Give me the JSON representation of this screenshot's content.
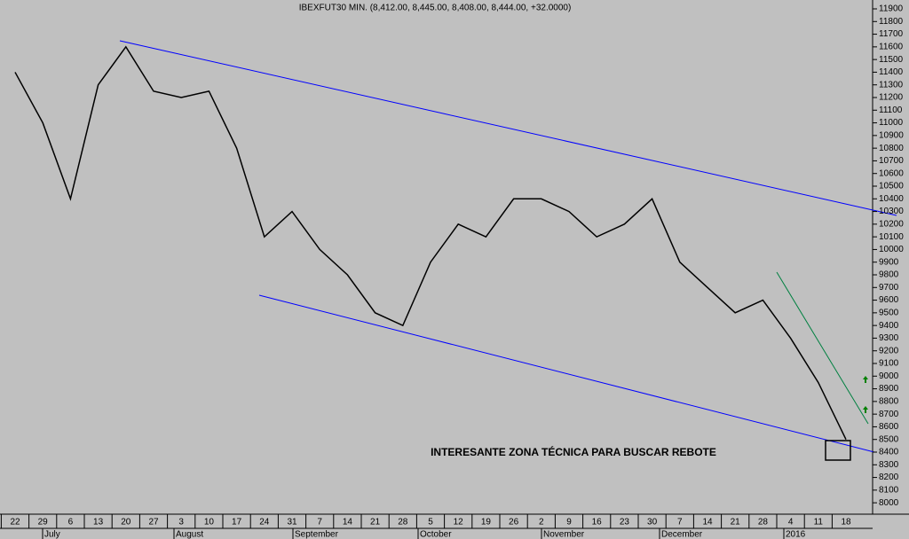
{
  "chart_data": {
    "type": "line",
    "title": "IBEXFUT30 MIN. (8,412.00, 8,445.00, 8,408.00, 8,444.00, +32.0000)",
    "annotation": "INTERESANTE ZONA TÉCNICA PARA BUSCAR REBOTE",
    "categories": [
      "22",
      "29",
      "6",
      "13",
      "20",
      "27",
      "3",
      "10",
      "17",
      "24",
      "31",
      "7",
      "14",
      "21",
      "28",
      "5",
      "12",
      "19",
      "26",
      "2",
      "9",
      "16",
      "23",
      "30",
      "7",
      "14",
      "21",
      "28",
      "4",
      "11",
      "18"
    ],
    "month_labels": [
      "July",
      "August",
      "September",
      "October",
      "November",
      "December",
      "2016"
    ],
    "series": [
      {
        "name": "IBEXFUT30",
        "color": "#000000",
        "values": [
          11400,
          11000,
          10400,
          11300,
          11600,
          11250,
          11200,
          11250,
          10800,
          10100,
          10300,
          10000,
          9800,
          9500,
          9400,
          9900,
          10200,
          10100,
          10400,
          10400,
          10300,
          10100,
          10200,
          10400,
          9900,
          9700,
          9500,
          9600,
          9300,
          8950,
          8500
        ]
      }
    ],
    "ylim": [
      7910,
      11970
    ],
    "yticks": [
      8000,
      8100,
      8200,
      8300,
      8400,
      8500,
      8600,
      8700,
      8800,
      8900,
      9000,
      9100,
      9200,
      9300,
      9400,
      9500,
      9600,
      9700,
      9800,
      9900,
      10000,
      10100,
      10200,
      10300,
      10400,
      10500,
      10600,
      10700,
      10800,
      10900,
      11000,
      11100,
      11200,
      11300,
      11400,
      11500,
      11600,
      11700,
      11800,
      11900
    ],
    "grid": false
  }
}
